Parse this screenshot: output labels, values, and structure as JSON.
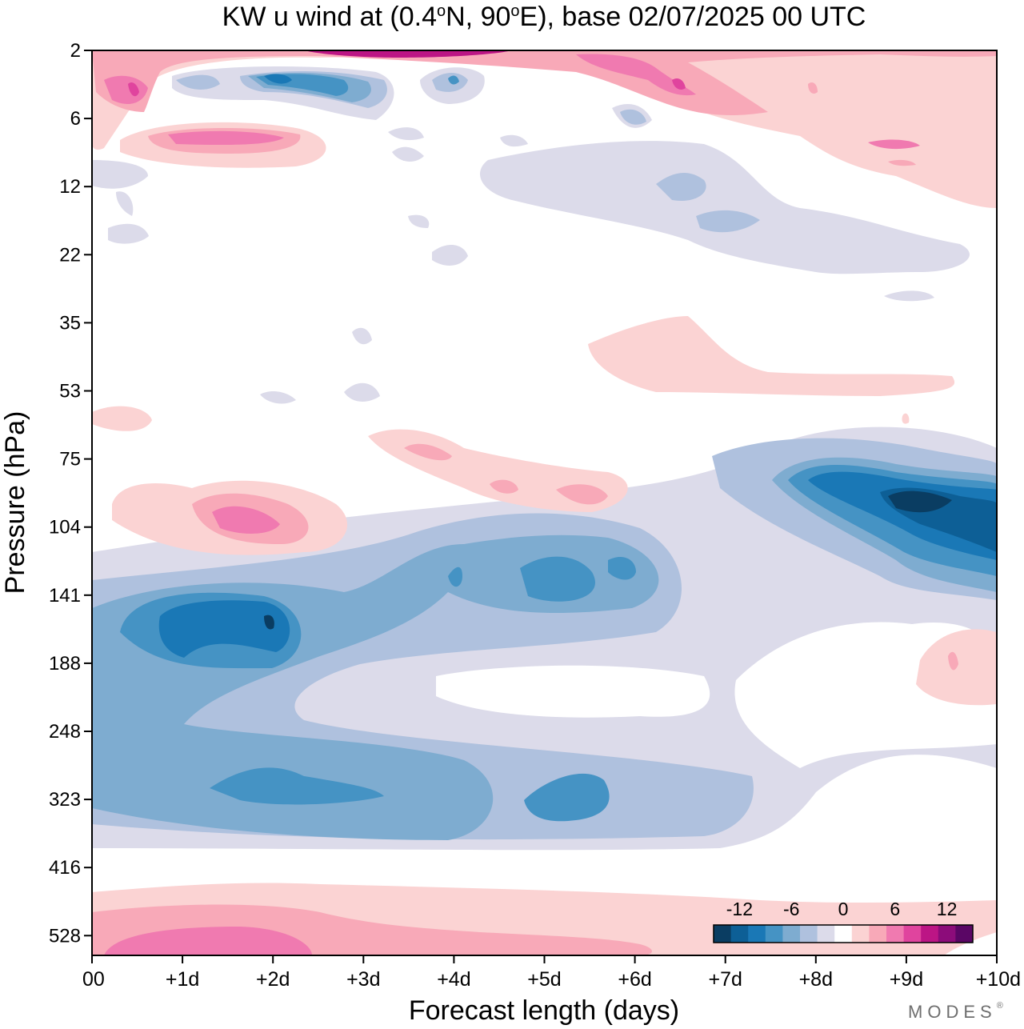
{
  "chart_data": {
    "type": "heatmap",
    "subtype": "filled-contour",
    "title_pre": "KW u wind at (0.4",
    "title_mid": "N, 90",
    "title_post": "E),  base 02/07/2025  00 UTC",
    "degree_symbol": "o",
    "xlabel": "Forecast length (days)",
    "ylabel": "Pressure (hPa)",
    "x_ticks": [
      "00",
      "+1d",
      "+2d",
      "+3d",
      "+4d",
      "+5d",
      "+6d",
      "+7d",
      "+8d",
      "+9d",
      "+10d"
    ],
    "x_range_days": [
      0,
      10
    ],
    "y_ticks": [
      "2",
      "6",
      "12",
      "22",
      "35",
      "53",
      "75",
      "104",
      "141",
      "188",
      "248",
      "323",
      "416",
      "528"
    ],
    "y_scale": "log-pressure (top = 2 hPa, bottom ≈ 700 hPa)",
    "grid": false,
    "legend_position": "bottom-right inside plot",
    "colorbar": {
      "tick_labels": [
        "-12",
        "-6",
        "0",
        "6",
        "12"
      ],
      "tick_values": [
        -12,
        -6,
        0,
        6,
        12
      ],
      "level_step": 2,
      "colors": [
        "#0a3d62",
        "#0d5f96",
        "#1a78b6",
        "#4593c4",
        "#7eacd0",
        "#afc1de",
        "#dcdbea",
        "#ffffff",
        "#fbd3d3",
        "#f8a9b8",
        "#f07ab0",
        "#e0449e",
        "#bc1585",
        "#8c0c7a",
        "#5a0665"
      ]
    },
    "fields": [
      {
        "name": "upper stratosphere easterly",
        "days": [
          1.0,
          4.0
        ],
        "hPa": [
          3,
          4
        ],
        "u_min": -8
      },
      {
        "name": "upper stratosphere westerly",
        "days": [
          0.2,
          6.5
        ],
        "hPa": [
          2,
          8
        ],
        "u_max": 14
      },
      {
        "name": "tropopause easterly",
        "days": [
          0.5,
          6.5
        ],
        "hPa": [
          120,
          380
        ],
        "u_min": -12
      },
      {
        "name": "day 8-10 easterly jet",
        "days": [
          7.8,
          10.0
        ],
        "hPa": [
          75,
          140
        ],
        "u_min": -14
      },
      {
        "name": "near-surface westerly",
        "days": [
          0.0,
          10.0
        ],
        "hPa": [
          480,
          700
        ],
        "u_max": 10
      }
    ],
    "brand": "MODES",
    "brand_mark": "®"
  }
}
